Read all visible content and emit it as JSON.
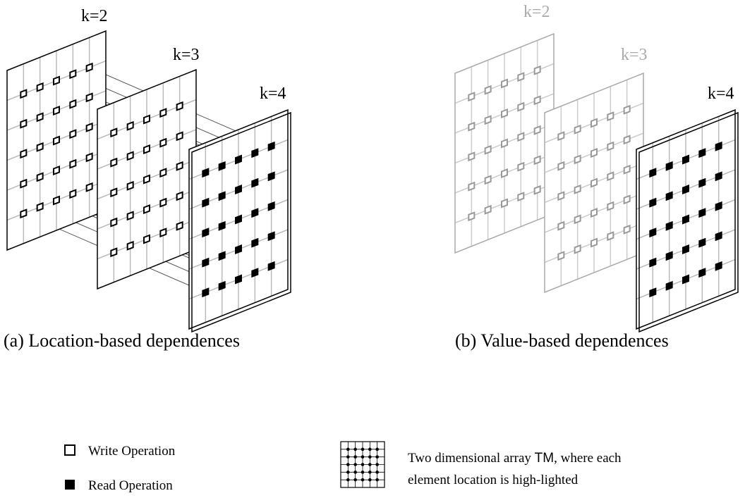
{
  "panels": [
    {
      "caption": "(a) Location-based dependences",
      "planes": [
        {
          "label": "k=2"
        },
        {
          "label": "k=3"
        },
        {
          "label": "k=4"
        }
      ]
    },
    {
      "caption": "(b) Value-based dependences",
      "planes": [
        {
          "label": "k=2"
        },
        {
          "label": "k=3"
        },
        {
          "label": "k=4"
        }
      ]
    }
  ],
  "legend": {
    "write": "Write Operation",
    "read": "Read Operation",
    "array": {
      "line1": {
        "before": "Two dimensional array ",
        "name": "TM",
        "after": ", where each"
      },
      "line2": "element location is high-lighted"
    }
  }
}
